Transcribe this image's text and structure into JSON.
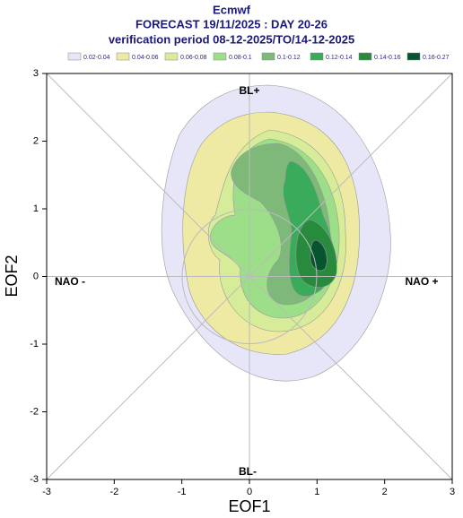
{
  "chart_data": {
    "type": "contour",
    "title": "Ecmwf",
    "subtitle": "FORECAST 19/11/2025 : DAY 20-26",
    "subtitle2": "verification period 08-12-2025/TO/14-12-2025",
    "x_label": "EOF1",
    "y_label": "EOF2",
    "annotations": [
      "BL+",
      "BL-",
      "NAO -",
      "NAO +"
    ],
    "series": [
      {
        "name": "0.02-0.04",
        "color": "#e6e6f8"
      },
      {
        "name": "0.04-0.06",
        "color": "#eeeaa4"
      },
      {
        "name": "0.06-0.08",
        "color": "#d6ec98"
      },
      {
        "name": "0.08-0.1",
        "color": "#9cdf88"
      },
      {
        "name": "0.1-0.12",
        "color": "#7fb97a"
      },
      {
        "name": "0.12-0.14",
        "color": "#3aab5a"
      },
      {
        "name": "0.14-0.16",
        "color": "#278a3c"
      },
      {
        "name": "0.16-0.27",
        "color": "#075530"
      }
    ],
    "xlim": [
      -3,
      3
    ],
    "ylim": [
      -3,
      3
    ],
    "xticks": [
      -3,
      -2,
      -1,
      0,
      1,
      2,
      3
    ],
    "yticks": [
      -3,
      -2,
      -1,
      0,
      1,
      2,
      3
    ]
  }
}
